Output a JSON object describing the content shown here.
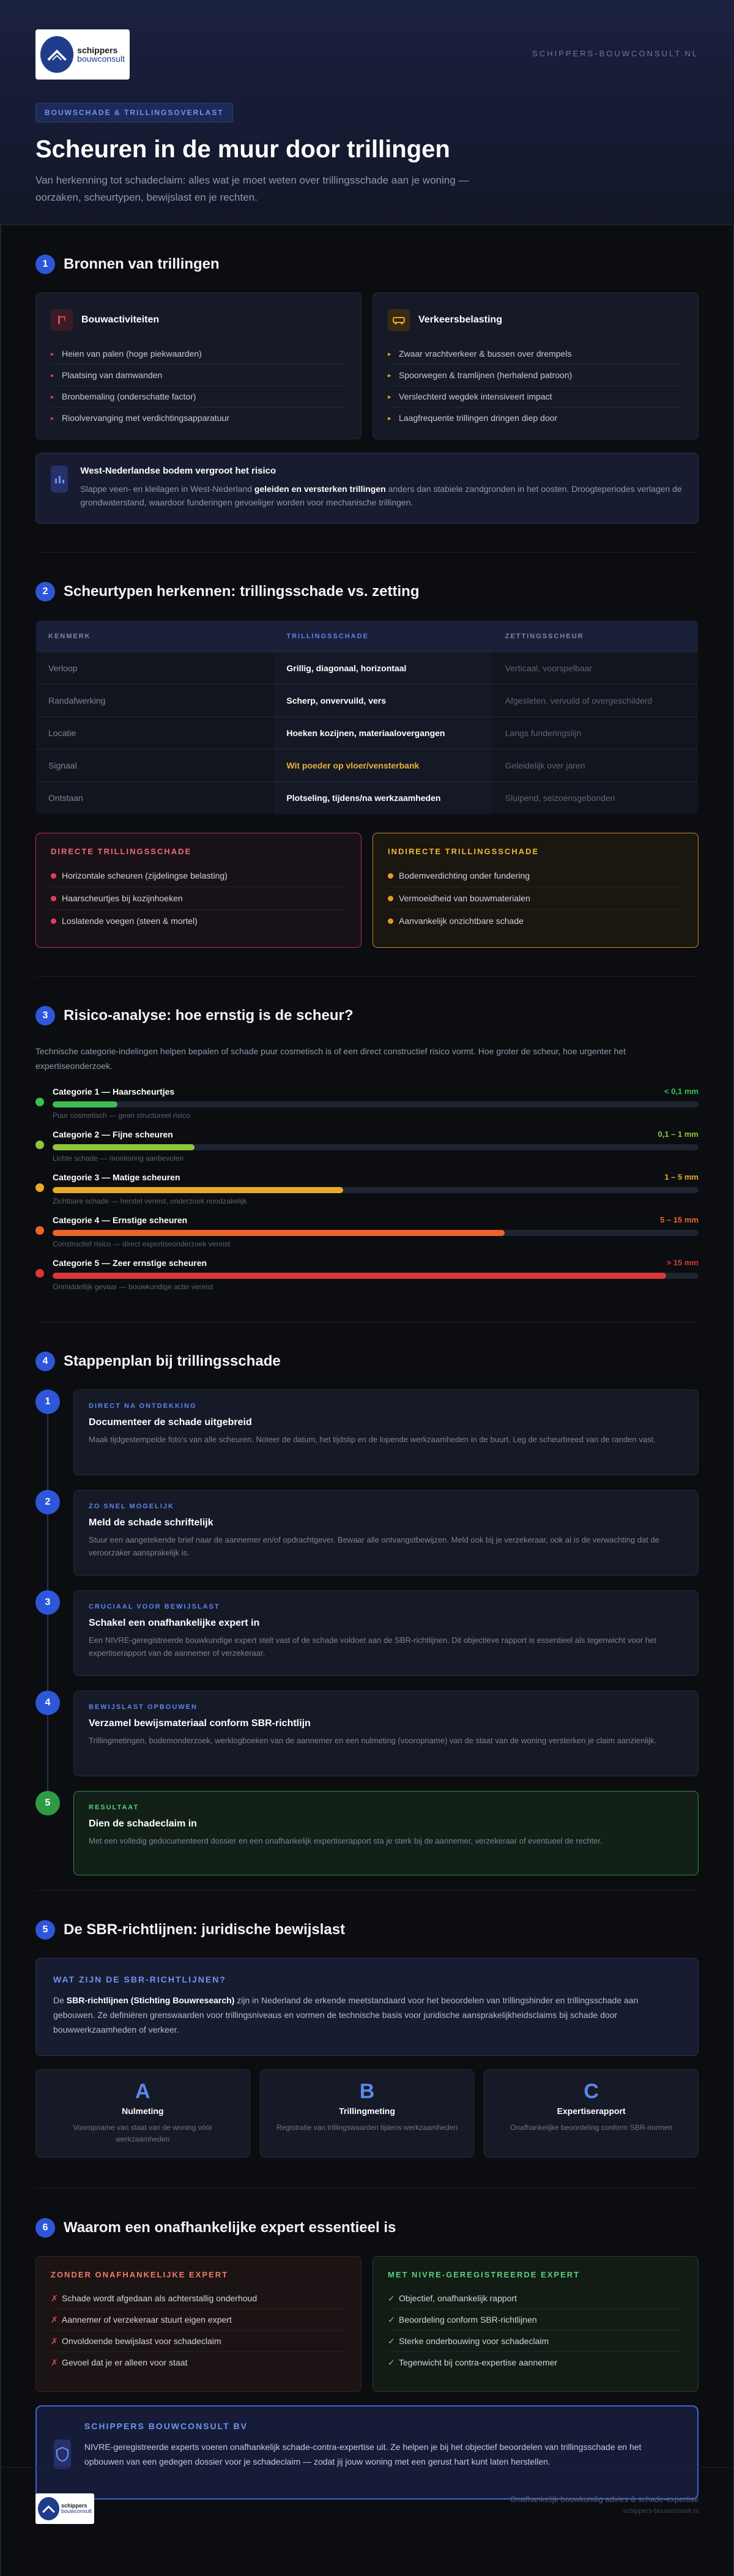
{
  "header": {
    "logo_line1": "schippers",
    "logo_line2": "bouwconsult",
    "domain": "SCHIPPERS-BOUWCONSULT.NL",
    "tag": "BOUWSCHADE & TRILLINGSOVERLAST",
    "title": "Scheuren in de muur door trillingen",
    "subtitle": "Van herkenning tot schadeclaim: alles wat je moet weten over trillingsschade aan je woning — oorzaken, scheurtypen, bewijslast en je rechten."
  },
  "s1": {
    "num": "1",
    "title": "Bronnen van trillingen",
    "bouw": {
      "title": "Bouwactiviteiten",
      "items": [
        "Heien van palen (hoge piekwaarden)",
        "Plaatsing van damwanden",
        "Bronbemaling (onderschatte factor)",
        "Rioolvervanging met verdichtingsapparatuur"
      ]
    },
    "verkeer": {
      "title": "Verkeersbelasting",
      "items": [
        "Zwaar vrachtverkeer & bussen over drempels",
        "Spoorwegen & tramlijnen (herhalend patroon)",
        "Verslechterd wegdek intensiveert impact",
        "Laagfrequente trillingen dringen diep door"
      ]
    },
    "info": {
      "title": "West-Nederlandse bodem vergroot het risico",
      "text1": "Slappe veen- en kleilagen in West-Nederland ",
      "bold": "geleiden en versterken trillingen",
      "text2": " anders dan stabiele zandgronden in het oosten. Droogteperiodes verlagen de grondwaterstand, waardoor funderingen gevoeliger worden voor mechanische trillingen."
    }
  },
  "s2": {
    "num": "2",
    "title": "Scheurtypen herkennen: trillingsschade vs. zetting",
    "headers": [
      "KENMERK",
      "TRILLINGSSCHADE",
      "ZETTINGSSCHEUR"
    ],
    "rows": [
      [
        "Verloop",
        "Grillig, diagonaal, horizontaal",
        "Verticaal, voorspelbaar"
      ],
      [
        "Randafwerking",
        "Scherp, onvervuild, vers",
        "Afgesleten, vervuild of overgeschilderd"
      ],
      [
        "Locatie",
        "Hoeken kozijnen, materiaalovergangen",
        "Langs funderingslijn"
      ],
      [
        "Signaal",
        "Wit poeder op vloer/vensterbank",
        "Geleidelijk over jaren"
      ],
      [
        "Ontstaan",
        "Plotseling, tijdens/na werkzaamheden",
        "Sluipend, seizoensgebonden"
      ]
    ],
    "direct": {
      "title": "DIRECTE TRILLINGSSCHADE",
      "items": [
        "Horizontale scheuren (zijdelingse belasting)",
        "Haarscheurtjes bij kozijnhoeken",
        "Loslatende voegen (steen & mortel)"
      ]
    },
    "indirect": {
      "title": "INDIRECTE TRILLINGSSCHADE",
      "items": [
        "Bodemverdichting onder fundering",
        "Vermoeidheid van bouwmaterialen",
        "Aanvankelijk onzichtbare schade"
      ]
    }
  },
  "s3": {
    "num": "3",
    "title": "Risico-analyse: hoe ernstig is de scheur?",
    "lead": "Technische categorie-indelingen helpen bepalen of schade puur cosmetisch is of een direct constructief risico vormt. Hoe groter de scheur, hoe urgenter het expertiseonderzoek.",
    "cats": [
      {
        "name": "Categorie 1 — Haarscheurtjes",
        "val": "< 0,1 mm",
        "sub": "Puur cosmetisch — geen structureel risico",
        "pct": 10,
        "color": "#3bbf52"
      },
      {
        "name": "Categorie 2 — Fijne scheuren",
        "val": "0,1 – 1 mm",
        "sub": "Lichte schade — monitoring aanbevolen",
        "pct": 22,
        "color": "#8ec63a"
      },
      {
        "name": "Categorie 3 — Matige scheuren",
        "val": "1 – 5 mm",
        "sub": "Zichtbare schade — herstel vereist, onderzoek noodzakelijk",
        "pct": 45,
        "color": "#e8a92a"
      },
      {
        "name": "Categorie 4 — Ernstige scheuren",
        "val": "5 – 15 mm",
        "sub": "Constructief risico — direct expertiseonderzoek vereist",
        "pct": 70,
        "color": "#ea6628"
      },
      {
        "name": "Categorie 5 — Zeer ernstige scheuren",
        "val": "> 15 mm",
        "sub": "Onmiddellijk gevaar — bouwkundige actie vereist",
        "pct": 95,
        "color": "#d9383a"
      }
    ]
  },
  "s4": {
    "num": "4",
    "title": "Stappenplan bij trillingsschade",
    "steps": [
      {
        "n": "1",
        "label": "DIRECT NA ONTDEKKING",
        "h": "Documenteer de schade uitgebreid",
        "d": "Maak tijdgestempelde foto's van alle scheuren. Noteer de datum, het tijdstip en de lopende werkzaamheden in de buurt. Leg de scheurbreed van de randen vast."
      },
      {
        "n": "2",
        "label": "ZO SNEL MOGELIJK",
        "h": "Meld de schade schriftelijk",
        "d": "Stuur een aangetekende brief naar de aannemer en/of opdrachtgever. Bewaar alle ontvangstbewijzen. Meld ook bij je verzekeraar, ook al is de verwachting dat de veroorzaker aansprakelijk is."
      },
      {
        "n": "3",
        "label": "CRUCIAAL VOOR BEWIJSLAST",
        "h": "Schakel een onafhankelijke expert in",
        "d": "Een NIVRE-geregistreerde bouwkundige expert stelt vast of de schade voldoet aan de SBR-richtlijnen. Dit objectieve rapport is essentieel als tegenwicht voor het expertiserapport van de aannemer of verzekeraar."
      },
      {
        "n": "4",
        "label": "BEWIJSLAST OPBOUWEN",
        "h": "Verzamel bewijsmateriaal conform SBR-richtlijn",
        "d": "Trillingmetingen, bodemonderzoek, werklogboeken van de aannemer en een nulmeting (vooropname) van de staat van de woning versterken je claim aanzienlijk."
      },
      {
        "n": "5",
        "label": "RESULTAAT",
        "h": "Dien de schadeclaim in",
        "d": "Met een volledig gedocumenteerd dossier en een onafhankelijk expertiserapport sta je sterk bij de aannemer, verzekeraar of eventueel de rechter."
      }
    ]
  },
  "s5": {
    "num": "5",
    "title": "De SBR-richtlijnen: juridische bewijslast",
    "box": {
      "title": "WAT ZIJN DE SBR-RICHTLIJNEN?",
      "pre": "De ",
      "bold": "SBR-richtlijnen (Stichting Bouwresearch)",
      "post": " zijn in Nederland de erkende meetstandaard voor het beoordelen van trillingshinder en trillingsschade aan gebouwen. Ze definiëren grenswaarden voor trillingsniveaus en vormen de technische basis voor juridische aansprakelijkheidsclaims bij schade door bouwwerkzaamheden of verkeer."
    },
    "cards": [
      {
        "L": "A",
        "t": "Nulmeting",
        "d": "Vooropname van staat van de woning vóór werkzaamheden"
      },
      {
        "L": "B",
        "t": "Trillingmeting",
        "d": "Registratie van trillingswaarden tijdens werkzaamheden"
      },
      {
        "L": "C",
        "t": "Expertiserapport",
        "d": "Onafhankelijke beoordeling conform SBR-normen"
      }
    ]
  },
  "s6": {
    "num": "6",
    "title": "Waarom een onafhankelijke expert essentieel is",
    "bad": {
      "title": "ZONDER ONAFHANKELIJKE EXPERT",
      "items": [
        "Schade wordt afgedaan als achterstallig onderhoud",
        "Aannemer of verzekeraar stuurt eigen expert",
        "Onvoldoende bewijslast voor schadeclaim",
        "Gevoel dat je er alleen voor staat"
      ]
    },
    "good": {
      "title": "MET NIVRE-GEREGISTREERDE EXPERT",
      "items": [
        "Objectief, onafhankelijk rapport",
        "Beoordeling conform SBR-richtlijnen",
        "Sterke onderbouwing voor schadeclaim",
        "Tegenwicht bij contra-expertise aannemer"
      ]
    },
    "cta": {
      "title": "SCHIPPERS BOUWCONSULT BV",
      "text": "NIVRE-geregistreerde experts voeren onafhankelijk schade-contra-expertise uit. Ze helpen je bij het objectief beoordelen van trillingsschade en het opbouwen van een gedegen dossier voor je schadeclaim — zodat jij jouw woning met een gerust hart kunt laten herstellen."
    }
  },
  "footer": {
    "line1": "Onafhankelijk bouwkundig advies & schade-expertise",
    "line2": "schippers-bouwconsult.nl"
  }
}
